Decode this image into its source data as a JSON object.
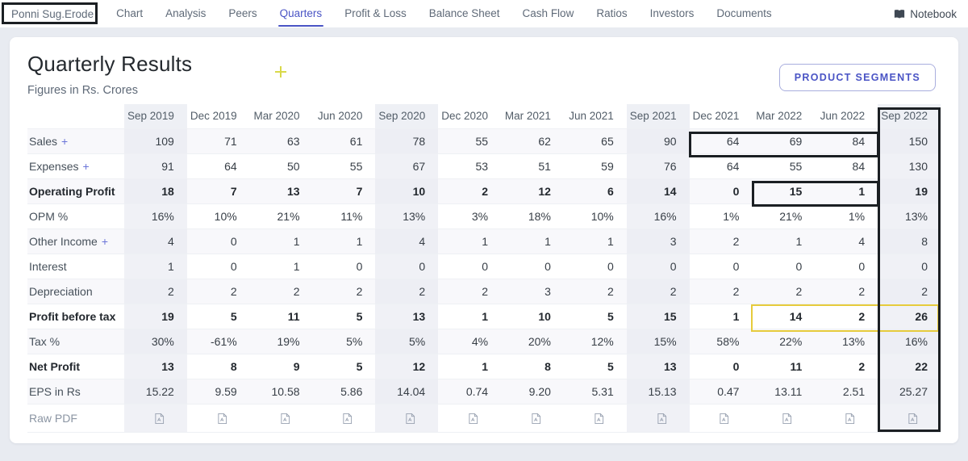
{
  "nav": {
    "company": "Ponni Sug.Erode",
    "tabs": [
      "Chart",
      "Analysis",
      "Peers",
      "Quarters",
      "Profit & Loss",
      "Balance Sheet",
      "Cash Flow",
      "Ratios",
      "Investors",
      "Documents"
    ],
    "active_tab": "Quarters",
    "notebook_label": "Notebook",
    "notebook_icon": "book-icon"
  },
  "header": {
    "title": "Quarterly Results",
    "subtitle": "Figures in Rs. Crores",
    "segments_button": "PRODUCT SEGMENTS"
  },
  "table": {
    "columns": [
      "Sep 2019",
      "Dec 2019",
      "Mar 2020",
      "Jun 2020",
      "Sep 2020",
      "Dec 2020",
      "Mar 2021",
      "Jun 2021",
      "Sep 2021",
      "Dec 2021",
      "Mar 2022",
      "Jun 2022",
      "Sep 2022"
    ],
    "highlighted_columns": [
      "Sep 2019",
      "Sep 2020",
      "Sep 2021",
      "Sep 2022"
    ],
    "rows": [
      {
        "label": "Sales",
        "expandable": true,
        "bold": false,
        "values": [
          "109",
          "71",
          "63",
          "61",
          "78",
          "55",
          "62",
          "65",
          "90",
          "64",
          "69",
          "84",
          "150"
        ]
      },
      {
        "label": "Expenses",
        "expandable": true,
        "bold": false,
        "values": [
          "91",
          "64",
          "50",
          "55",
          "67",
          "53",
          "51",
          "59",
          "76",
          "64",
          "55",
          "84",
          "130"
        ]
      },
      {
        "label": "Operating Profit",
        "expandable": false,
        "bold": true,
        "values": [
          "18",
          "7",
          "13",
          "7",
          "10",
          "2",
          "12",
          "6",
          "14",
          "0",
          "15",
          "1",
          "19"
        ]
      },
      {
        "label": "OPM %",
        "expandable": false,
        "bold": false,
        "values": [
          "16%",
          "10%",
          "21%",
          "11%",
          "13%",
          "3%",
          "18%",
          "10%",
          "16%",
          "1%",
          "21%",
          "1%",
          "13%"
        ]
      },
      {
        "label": "Other Income",
        "expandable": true,
        "bold": false,
        "values": [
          "4",
          "0",
          "1",
          "1",
          "4",
          "1",
          "1",
          "1",
          "3",
          "2",
          "1",
          "4",
          "8"
        ]
      },
      {
        "label": "Interest",
        "expandable": false,
        "bold": false,
        "values": [
          "1",
          "0",
          "1",
          "0",
          "0",
          "0",
          "0",
          "0",
          "0",
          "0",
          "0",
          "0",
          "0"
        ]
      },
      {
        "label": "Depreciation",
        "expandable": false,
        "bold": false,
        "values": [
          "2",
          "2",
          "2",
          "2",
          "2",
          "2",
          "3",
          "2",
          "2",
          "2",
          "2",
          "2",
          "2"
        ]
      },
      {
        "label": "Profit before tax",
        "expandable": false,
        "bold": true,
        "values": [
          "19",
          "5",
          "11",
          "5",
          "13",
          "1",
          "10",
          "5",
          "15",
          "1",
          "14",
          "2",
          "26"
        ]
      },
      {
        "label": "Tax %",
        "expandable": false,
        "bold": false,
        "values": [
          "30%",
          "-61%",
          "19%",
          "5%",
          "5%",
          "4%",
          "20%",
          "12%",
          "15%",
          "58%",
          "22%",
          "13%",
          "16%"
        ]
      },
      {
        "label": "Net Profit",
        "expandable": false,
        "bold": true,
        "values": [
          "13",
          "8",
          "9",
          "5",
          "12",
          "1",
          "8",
          "5",
          "13",
          "0",
          "11",
          "2",
          "22"
        ]
      },
      {
        "label": "EPS in Rs",
        "expandable": false,
        "bold": false,
        "values": [
          "15.22",
          "9.59",
          "10.58",
          "5.86",
          "14.04",
          "0.74",
          "9.20",
          "5.31",
          "15.13",
          "0.47",
          "13.11",
          "2.51",
          "25.27"
        ]
      },
      {
        "label": "Raw PDF",
        "expandable": false,
        "bold": false,
        "muted": true,
        "type": "pdf",
        "icon": "pdf-file-icon",
        "values": []
      }
    ]
  },
  "annotations": {
    "black_box_color": "#1b1f23",
    "yellow_box_color": "#e6cb3c",
    "boxes": [
      {
        "color": "black",
        "around": "company name Ponni Sug.Erode"
      },
      {
        "color": "black",
        "around": "Sep 2022 column"
      },
      {
        "color": "black",
        "around": "Sales cells Dec 2021 to Jun 2022"
      },
      {
        "color": "black",
        "around": "Operating Profit cells Mar 2022 to Jun 2022"
      },
      {
        "color": "yellow",
        "around": "Profit before tax cells Mar 2022 to Sep 2022"
      }
    ]
  },
  "colors": {
    "accent": "#4a54c5",
    "page_background": "#e8ebf1",
    "card_background": "#ffffff",
    "stripe_row": "#f8f8fb",
    "highlight_column": "#eef0f5"
  }
}
